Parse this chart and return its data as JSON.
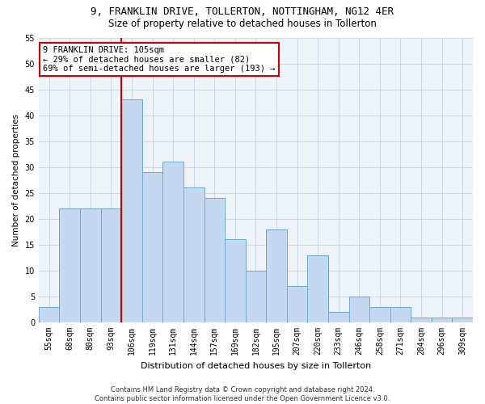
{
  "title1": "9, FRANKLIN DRIVE, TOLLERTON, NOTTINGHAM, NG12 4ER",
  "title2": "Size of property relative to detached houses in Tollerton",
  "xlabel": "Distribution of detached houses by size in Tollerton",
  "ylabel": "Number of detached properties",
  "bar_labels": [
    "55sqm",
    "68sqm",
    "80sqm",
    "93sqm",
    "106sqm",
    "119sqm",
    "131sqm",
    "144sqm",
    "157sqm",
    "169sqm",
    "182sqm",
    "195sqm",
    "207sqm",
    "220sqm",
    "233sqm",
    "246sqm",
    "258sqm",
    "271sqm",
    "284sqm",
    "296sqm",
    "309sqm"
  ],
  "bar_values": [
    3,
    22,
    22,
    22,
    43,
    29,
    31,
    26,
    24,
    16,
    10,
    18,
    7,
    13,
    2,
    5,
    3,
    3,
    1,
    1,
    1
  ],
  "bar_color": "#c5d8f0",
  "bar_edge_color": "#6aaad4",
  "vline_color": "#cc0000",
  "vline_x_idx": 4,
  "annotation_text": "9 FRANKLIN DRIVE: 105sqm\n← 29% of detached houses are smaller (82)\n69% of semi-detached houses are larger (193) →",
  "annotation_box_facecolor": "#ffffff",
  "annotation_box_edgecolor": "#cc0000",
  "ylim": [
    0,
    55
  ],
  "yticks": [
    0,
    5,
    10,
    15,
    20,
    25,
    30,
    35,
    40,
    45,
    50,
    55
  ],
  "footer": "Contains HM Land Registry data © Crown copyright and database right 2024.\nContains public sector information licensed under the Open Government Licence v3.0.",
  "bg_color": "#eef2f9",
  "grid_color": "#c8d4e8",
  "title1_fontsize": 9,
  "title2_fontsize": 8.5,
  "xlabel_fontsize": 8,
  "ylabel_fontsize": 7.5,
  "tick_fontsize": 7,
  "annot_fontsize": 7.5,
  "footer_fontsize": 6
}
